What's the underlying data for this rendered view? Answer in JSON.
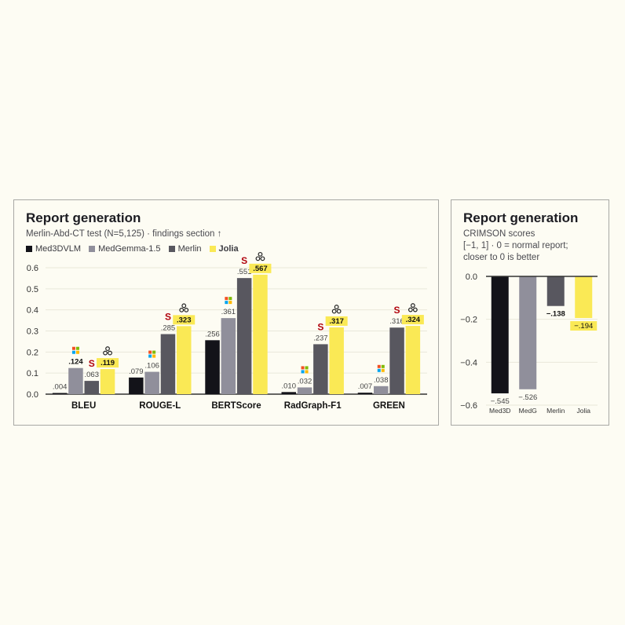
{
  "colors": {
    "Med3DVLM": "#131319",
    "MedGemma-1.5": "#908f9b",
    "Merlin": "#58575f",
    "Jolia": "#fae955",
    "grid": "#e9e8da",
    "axis": "#333333"
  },
  "icons": [
    "microsoft-logo-icon",
    "stanford-logo-icon",
    "jolia-logo-icon"
  ],
  "chart_data": [
    {
      "type": "bar",
      "title": "Report generation",
      "subtitle": "Merlin-Abd-CT test (N=5,125) · findings section ↑",
      "categories": [
        "BLEU",
        "ROUGE-L",
        "BERTScore",
        "RadGraph-F1",
        "GREEN"
      ],
      "series": [
        {
          "name": "Med3DVLM",
          "values": [
            0.004,
            0.079,
            0.256,
            0.01,
            0.007
          ],
          "labels": [
            ".004",
            ".079",
            ".256",
            ".010",
            ".007"
          ]
        },
        {
          "name": "MedGemma-1.5",
          "values": [
            0.124,
            0.106,
            0.361,
            0.032,
            0.038
          ],
          "labels": [
            ".124",
            ".106",
            ".361",
            ".032",
            ".038"
          ]
        },
        {
          "name": "Merlin",
          "values": [
            0.063,
            0.285,
            0.551,
            0.237,
            0.316
          ],
          "labels": [
            ".063",
            ".285",
            ".551",
            ".237",
            ".316"
          ]
        },
        {
          "name": "Jolia",
          "values": [
            0.119,
            0.323,
            0.567,
            0.317,
            0.324
          ],
          "labels": [
            ".119",
            ".323",
            ".567",
            ".317",
            ".324"
          ]
        }
      ],
      "bold_labels": [
        [
          false,
          false,
          false,
          false,
          false
        ],
        [
          true,
          false,
          false,
          false,
          false
        ],
        [
          false,
          false,
          false,
          false,
          false
        ],
        [
          false,
          true,
          true,
          true,
          true
        ]
      ],
      "icon_marks": [
        {
          "category": 0,
          "series": 1,
          "icon": "microsoft-logo-icon"
        },
        {
          "category": 0,
          "series": 2,
          "icon": "stanford-logo-icon"
        },
        {
          "category": 0,
          "series": 3,
          "icon": "jolia-logo-icon"
        },
        {
          "category": 1,
          "series": 1,
          "icon": "microsoft-logo-icon"
        },
        {
          "category": 1,
          "series": 2,
          "icon": "stanford-logo-icon"
        },
        {
          "category": 1,
          "series": 3,
          "icon": "jolia-logo-icon"
        },
        {
          "category": 2,
          "series": 1,
          "icon": "microsoft-logo-icon"
        },
        {
          "category": 2,
          "series": 2,
          "icon": "stanford-logo-icon"
        },
        {
          "category": 2,
          "series": 3,
          "icon": "jolia-logo-icon"
        },
        {
          "category": 3,
          "series": 1,
          "icon": "microsoft-logo-icon"
        },
        {
          "category": 3,
          "series": 2,
          "icon": "stanford-logo-icon"
        },
        {
          "category": 3,
          "series": 3,
          "icon": "jolia-logo-icon"
        },
        {
          "category": 4,
          "series": 1,
          "icon": "microsoft-logo-icon"
        },
        {
          "category": 4,
          "series": 2,
          "icon": "stanford-logo-icon"
        },
        {
          "category": 4,
          "series": 3,
          "icon": "jolia-logo-icon"
        }
      ],
      "yticks": [
        "0.0",
        "0.1",
        "0.2",
        "0.3",
        "0.4",
        "0.5",
        "0.6"
      ],
      "ylim": [
        0,
        0.6
      ],
      "grid": true,
      "legend_position": "top-left"
    },
    {
      "type": "bar",
      "title": "Report generation",
      "subtitle_lines": [
        "CRIMSON scores",
        "[−1, 1] · 0 = normal report;",
        "closer to 0 is better"
      ],
      "categories": [
        "Med3D",
        "MedG",
        "Merlin",
        "Jolia"
      ],
      "values": [
        -0.545,
        -0.526,
        -0.138,
        -0.194
      ],
      "labels": [
        "−.545",
        "−.526",
        "−.138",
        "−.194"
      ],
      "bold_labels": [
        false,
        false,
        true,
        false
      ],
      "series_colors": [
        "Med3DVLM",
        "MedGemma-1.5",
        "Merlin",
        "Jolia"
      ],
      "yticks": [
        "0.0",
        "−0.2",
        "−0.4",
        "−0.6"
      ],
      "ylim": [
        -0.6,
        0
      ],
      "grid": true
    }
  ]
}
